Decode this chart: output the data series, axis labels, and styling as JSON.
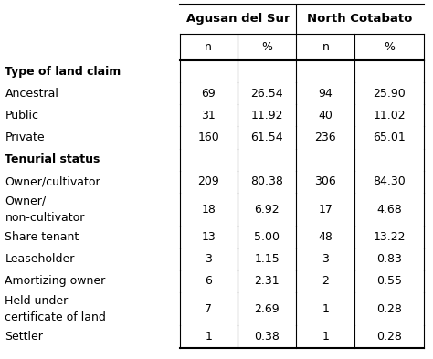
{
  "col_headers_top": [
    "Agusan del Sur",
    "North Cotabato"
  ],
  "col_headers_sub": [
    "n",
    "%",
    "n",
    "%"
  ],
  "rows": [
    {
      "label": "Type of land claim",
      "bold": true,
      "vals": [
        "",
        "",
        "",
        ""
      ],
      "multiline": false
    },
    {
      "label": "  Ancestral",
      "bold": false,
      "vals": [
        "69",
        "26.54",
        "94",
        "25.90"
      ],
      "multiline": false
    },
    {
      "label": "  Public",
      "bold": false,
      "vals": [
        "31",
        "11.92",
        "40",
        "11.02"
      ],
      "multiline": false
    },
    {
      "label": "  Private",
      "bold": false,
      "vals": [
        "160",
        "61.54",
        "236",
        "65.01"
      ],
      "multiline": false
    },
    {
      "label": "Tenurial status",
      "bold": true,
      "vals": [
        "",
        "",
        "",
        ""
      ],
      "multiline": false
    },
    {
      "label": "  Owner/cultivator",
      "bold": false,
      "vals": [
        "209",
        "80.38",
        "306",
        "84.30"
      ],
      "multiline": false
    },
    {
      "label": "  Owner/\n    non-cultivator",
      "bold": false,
      "vals": [
        "18",
        "6.92",
        "17",
        "4.68"
      ],
      "multiline": true
    },
    {
      "label": "  Share tenant",
      "bold": false,
      "vals": [
        "13",
        "5.00",
        "48",
        "13.22"
      ],
      "multiline": false
    },
    {
      "label": "  Leaseholder",
      "bold": false,
      "vals": [
        "3",
        "1.15",
        "3",
        "0.83"
      ],
      "multiline": false
    },
    {
      "label": "  Amortizing owner",
      "bold": false,
      "vals": [
        "6",
        "2.31",
        "2",
        "0.55"
      ],
      "multiline": false
    },
    {
      "label": "  Held under\n    certificate of land",
      "bold": false,
      "vals": [
        "7",
        "2.69",
        "1",
        "0.28"
      ],
      "multiline": true
    },
    {
      "label": "  Settler",
      "bold": false,
      "vals": [
        "1",
        "0.38",
        "1",
        "0.28"
      ],
      "multiline": false
    }
  ],
  "figsize": [
    4.74,
    3.93
  ],
  "dpi": 100,
  "bg_color": "#ffffff",
  "font_size": 9.0,
  "header_font_size": 9.5
}
